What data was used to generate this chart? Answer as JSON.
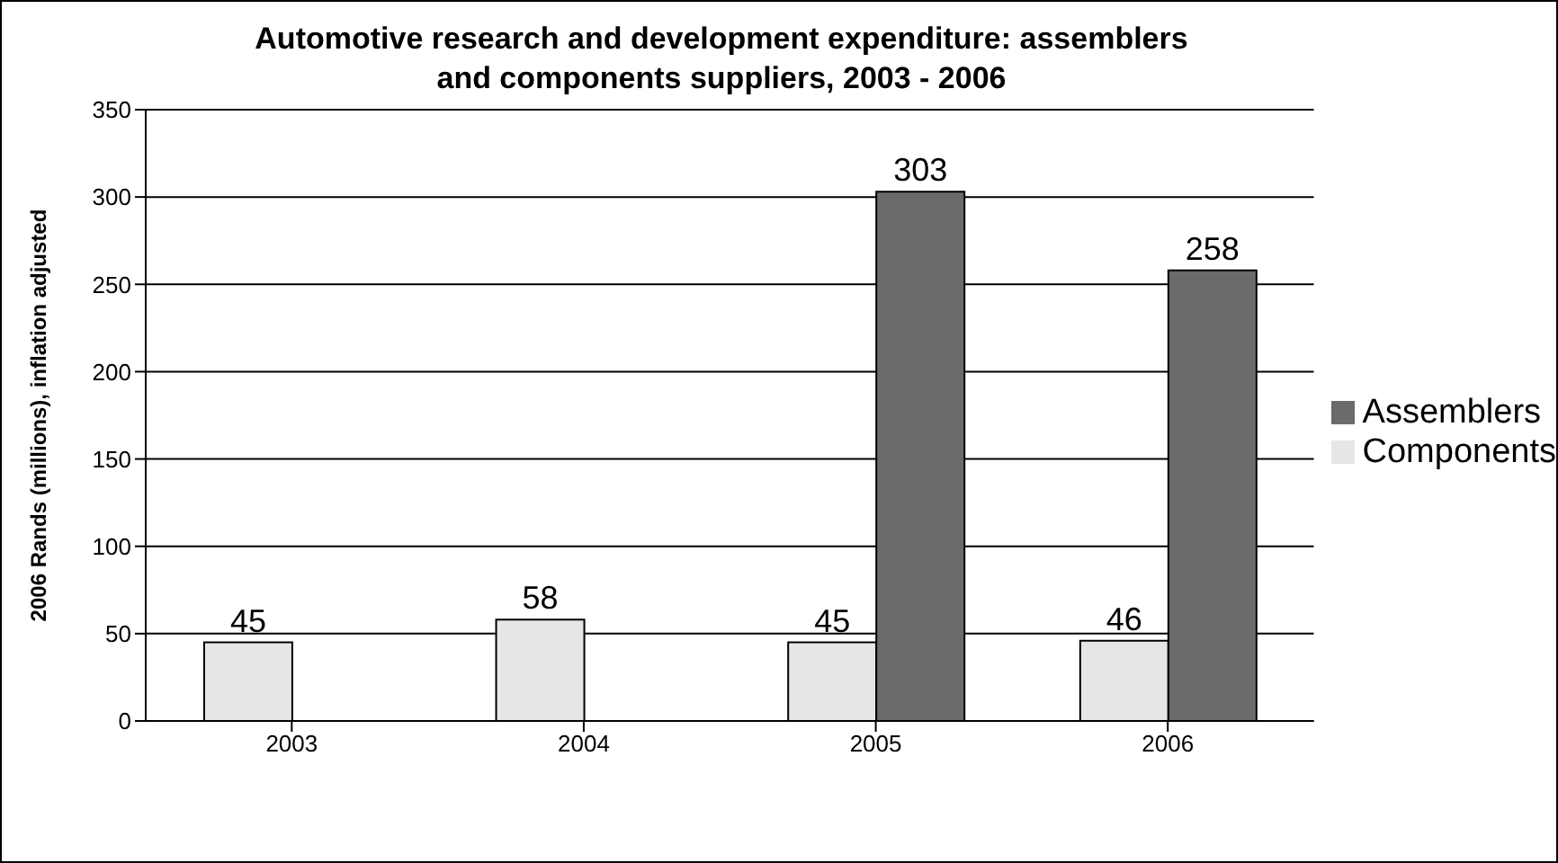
{
  "chart_data": {
    "type": "bar",
    "title": "Automotive research and development expenditure: assemblers and components suppliers, 2003 - 2006",
    "ylabel": "2006 Rands (millions), inflation adjusted",
    "categories": [
      "2003",
      "2004",
      "2005",
      "2006"
    ],
    "series": [
      {
        "name": "Components",
        "color": "#e6e6e6",
        "values": [
          45,
          58,
          45,
          46
        ]
      },
      {
        "name": "Assemblers",
        "color": "#6b6b6b",
        "values": [
          null,
          null,
          303,
          258
        ]
      }
    ],
    "ylim": [
      0,
      350
    ],
    "yticks": [
      0,
      50,
      100,
      150,
      200,
      250,
      300,
      350
    ],
    "grid": "y",
    "legend": "right",
    "data_labels": true
  }
}
